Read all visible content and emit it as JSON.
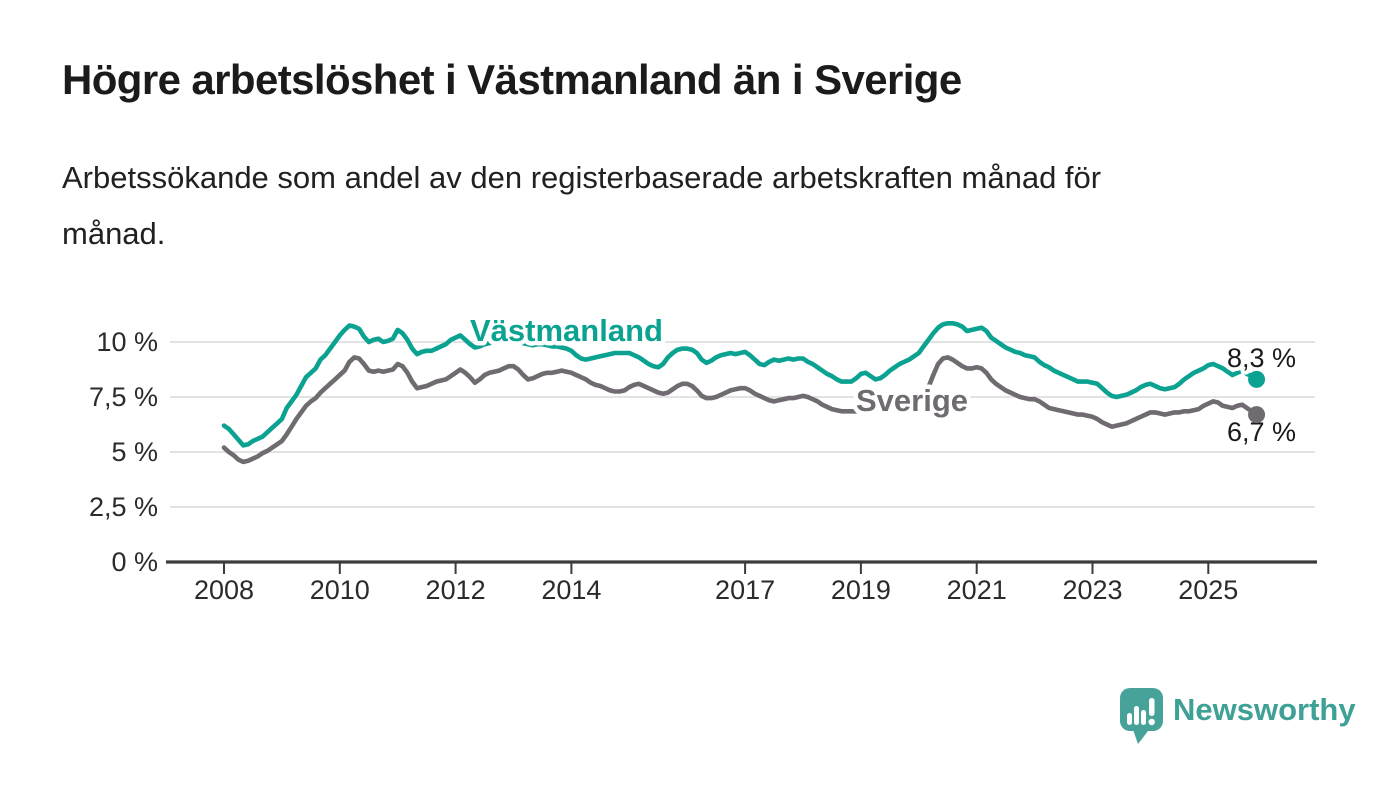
{
  "header": {
    "title": "Högre arbetslöshet i Västmanland än i Sverige",
    "subtitle": "Arbetssökande som andel av den registerbaserade arbetskraften månad för\nmånad."
  },
  "footer": {
    "brand": "Newsworthy",
    "logo_icon": "speech-bubble-bar-chart-icon",
    "brand_color": "#3fa096"
  },
  "chart_data": {
    "type": "line",
    "title": "",
    "xlabel": "",
    "ylabel": "",
    "x_unit": "year (monthly points)",
    "x_start": 2008.0,
    "points_per_year": 12,
    "x_end": 2025.83,
    "ylim": [
      0,
      11.6
    ],
    "grid": true,
    "yticks": [
      {
        "value": 0,
        "label": "0 %"
      },
      {
        "value": 2.5,
        "label": "2,5 %"
      },
      {
        "value": 5,
        "label": "5 %"
      },
      {
        "value": 7.5,
        "label": "7,5 %"
      },
      {
        "value": 10,
        "label": "10 %"
      }
    ],
    "xticks": [
      2008,
      2010,
      2012,
      2014,
      2017,
      2019,
      2021,
      2023,
      2025
    ],
    "series": [
      {
        "name": "Västmanland",
        "color": "#0ba291",
        "end_label": "8,3 %",
        "end_value": 8.3,
        "values": [
          6.2,
          6.05,
          5.8,
          5.55,
          5.3,
          5.35,
          5.5,
          5.6,
          5.7,
          5.9,
          6.1,
          6.3,
          6.5,
          7.0,
          7.3,
          7.6,
          8.0,
          8.4,
          8.6,
          8.8,
          9.2,
          9.4,
          9.7,
          10.0,
          10.3,
          10.55,
          10.75,
          10.7,
          10.6,
          10.25,
          10.0,
          10.1,
          10.15,
          10.0,
          10.05,
          10.15,
          10.55,
          10.4,
          10.1,
          9.7,
          9.45,
          9.55,
          9.6,
          9.6,
          9.7,
          9.8,
          9.9,
          10.1,
          10.2,
          10.3,
          10.1,
          9.9,
          9.75,
          9.8,
          9.9,
          9.95,
          10.0,
          10.05,
          10.05,
          10.1,
          10.1,
          10.0,
          9.95,
          9.9,
          9.85,
          9.9,
          9.9,
          9.85,
          9.8,
          9.8,
          9.75,
          9.7,
          9.6,
          9.4,
          9.25,
          9.2,
          9.25,
          9.3,
          9.35,
          9.4,
          9.45,
          9.5,
          9.5,
          9.5,
          9.5,
          9.4,
          9.3,
          9.15,
          9.0,
          8.9,
          8.85,
          9.0,
          9.3,
          9.5,
          9.65,
          9.7,
          9.7,
          9.65,
          9.5,
          9.2,
          9.05,
          9.15,
          9.3,
          9.4,
          9.45,
          9.5,
          9.45,
          9.5,
          9.55,
          9.4,
          9.2,
          9.0,
          8.95,
          9.1,
          9.2,
          9.15,
          9.2,
          9.25,
          9.2,
          9.25,
          9.25,
          9.1,
          9.0,
          8.85,
          8.7,
          8.55,
          8.45,
          8.3,
          8.2,
          8.2,
          8.2,
          8.35,
          8.55,
          8.6,
          8.45,
          8.3,
          8.35,
          8.5,
          8.7,
          8.85,
          9.0,
          9.1,
          9.2,
          9.35,
          9.5,
          9.8,
          10.1,
          10.4,
          10.65,
          10.8,
          10.85,
          10.85,
          10.8,
          10.7,
          10.5,
          10.55,
          10.6,
          10.65,
          10.5,
          10.2,
          10.05,
          9.9,
          9.75,
          9.65,
          9.55,
          9.5,
          9.4,
          9.35,
          9.3,
          9.1,
          8.95,
          8.85,
          8.7,
          8.6,
          8.5,
          8.4,
          8.3,
          8.2,
          8.2,
          8.2,
          8.15,
          8.1,
          7.9,
          7.7,
          7.55,
          7.5,
          7.55,
          7.6,
          7.7,
          7.8,
          7.95,
          8.05,
          8.1,
          8.0,
          7.9,
          7.85,
          7.9,
          7.95,
          8.1,
          8.3,
          8.45,
          8.6,
          8.7,
          8.8,
          8.95,
          9.0,
          8.9,
          8.8,
          8.65,
          8.5,
          8.6,
          8.7,
          8.55,
          8.45,
          8.3
        ]
      },
      {
        "name": "Sverige",
        "color": "#6f6b71",
        "end_label": "6,7 %",
        "end_value": 6.7,
        "values": [
          5.2,
          5.0,
          4.85,
          4.65,
          4.55,
          4.6,
          4.7,
          4.8,
          4.95,
          5.05,
          5.2,
          5.35,
          5.5,
          5.8,
          6.15,
          6.5,
          6.8,
          7.1,
          7.3,
          7.45,
          7.7,
          7.9,
          8.1,
          8.3,
          8.5,
          8.7,
          9.1,
          9.3,
          9.25,
          9.0,
          8.7,
          8.65,
          8.7,
          8.65,
          8.7,
          8.75,
          9.0,
          8.9,
          8.6,
          8.2,
          7.9,
          7.95,
          8.0,
          8.1,
          8.2,
          8.25,
          8.3,
          8.45,
          8.6,
          8.75,
          8.6,
          8.4,
          8.15,
          8.3,
          8.5,
          8.6,
          8.65,
          8.7,
          8.8,
          8.9,
          8.9,
          8.75,
          8.5,
          8.3,
          8.35,
          8.45,
          8.55,
          8.6,
          8.6,
          8.65,
          8.7,
          8.65,
          8.6,
          8.5,
          8.4,
          8.3,
          8.15,
          8.05,
          8.0,
          7.9,
          7.8,
          7.75,
          7.75,
          7.8,
          7.95,
          8.05,
          8.1,
          8.0,
          7.9,
          7.8,
          7.7,
          7.65,
          7.7,
          7.85,
          8.0,
          8.1,
          8.1,
          8.0,
          7.8,
          7.55,
          7.45,
          7.45,
          7.5,
          7.6,
          7.7,
          7.8,
          7.85,
          7.9,
          7.9,
          7.8,
          7.65,
          7.55,
          7.45,
          7.35,
          7.3,
          7.35,
          7.4,
          7.45,
          7.45,
          7.5,
          7.55,
          7.5,
          7.4,
          7.3,
          7.15,
          7.05,
          6.95,
          6.9,
          6.85,
          6.85,
          6.85,
          6.85,
          6.9,
          6.9,
          6.9,
          6.95,
          6.95,
          7.0,
          7.0,
          7.05,
          7.1,
          7.15,
          7.2,
          7.3,
          7.4,
          7.6,
          7.95,
          8.5,
          9.0,
          9.25,
          9.3,
          9.2,
          9.05,
          8.9,
          8.8,
          8.8,
          8.85,
          8.8,
          8.6,
          8.3,
          8.1,
          7.95,
          7.8,
          7.7,
          7.6,
          7.5,
          7.45,
          7.4,
          7.4,
          7.3,
          7.15,
          7.0,
          6.95,
          6.9,
          6.85,
          6.8,
          6.75,
          6.7,
          6.7,
          6.65,
          6.6,
          6.5,
          6.35,
          6.25,
          6.15,
          6.2,
          6.25,
          6.3,
          6.4,
          6.5,
          6.6,
          6.7,
          6.8,
          6.8,
          6.75,
          6.7,
          6.75,
          6.8,
          6.8,
          6.85,
          6.85,
          6.9,
          6.95,
          7.1,
          7.2,
          7.3,
          7.25,
          7.1,
          7.05,
          7.0,
          7.1,
          7.15,
          7.0,
          6.85,
          6.7
        ]
      }
    ]
  }
}
